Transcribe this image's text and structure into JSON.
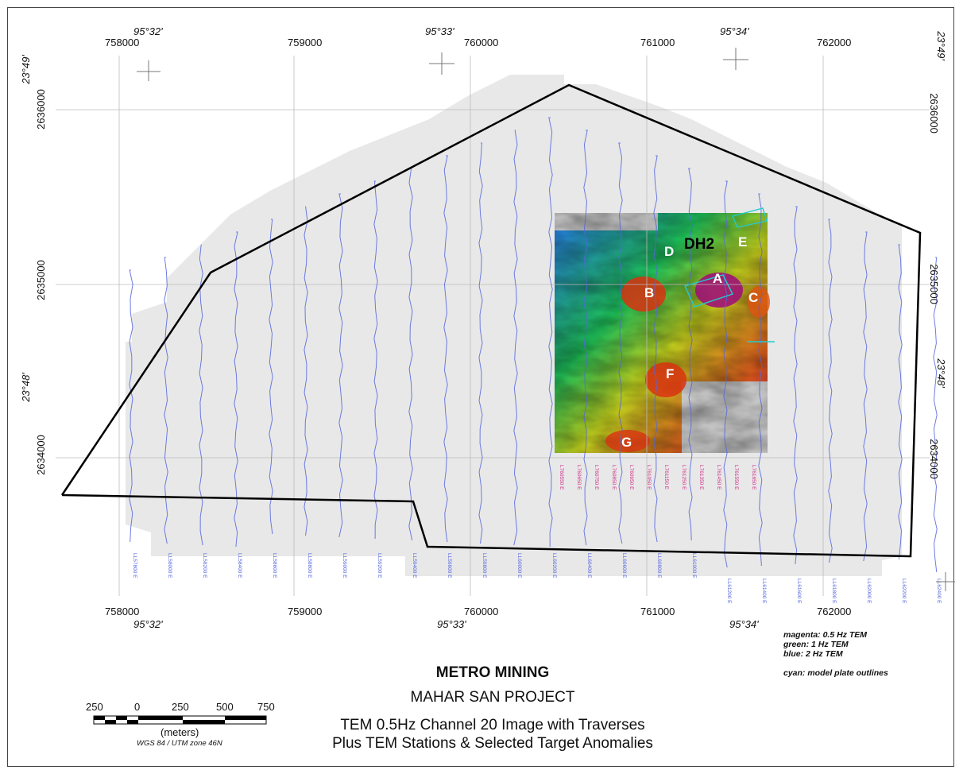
{
  "map": {
    "easting_ticks": [
      "758000",
      "759000",
      "760000",
      "761000",
      "762000"
    ],
    "northing_ticks": [
      "2636000",
      "2635000",
      "2634000"
    ],
    "longitude_labels": [
      "95°32'",
      "95°33'",
      "95°34'"
    ],
    "latitude_labels": [
      "23°49'",
      "23°48'"
    ],
    "targets": [
      "A",
      "B",
      "C",
      "D",
      "E",
      "F",
      "G"
    ],
    "drillhole_label": "DH2",
    "traverse_labels_blue": [
      "LL57800 E",
      "LL58000 E",
      "LL58200 E",
      "LL58400 E",
      "LL58600 E",
      "LL58800 E",
      "LL59000 E",
      "LL59200 E",
      "LL59400 E",
      "LL59600 E",
      "LL59800 E",
      "LL60000 E",
      "LL60200 E",
      "LL60400 E",
      "LL60600 E",
      "LL60800 E",
      "LL61000 E",
      "LL61200 E",
      "LL61400 E",
      "LL61600 E",
      "LL61800 E",
      "LL62000 E",
      "LL62200 E",
      "LL62400 E"
    ],
    "traverse_labels_magenta": [
      "L760550 E",
      "L760650 E",
      "L760750 E",
      "L760850 E",
      "L760950 E",
      "L761050 E",
      "L761150 E",
      "L761250 E",
      "L761350 E",
      "L761450 E",
      "L761550 E",
      "L761650 E"
    ]
  },
  "legend": {
    "magenta": "magenta: 0.5 Hz TEM",
    "green": "green:    1 Hz TEM",
    "blue": "blue:      2 Hz TEM",
    "cyan": "cyan:      model plate outlines"
  },
  "title": {
    "company": "METRO MINING",
    "project": "MAHAR SAN PROJECT",
    "line1": "TEM 0.5Hz Channel 20 Image with Traverses",
    "line2": "Plus TEM Stations & Selected Target Anomalies"
  },
  "scale_bar": {
    "labels": [
      "250",
      "0",
      "250",
      "500",
      "750"
    ],
    "unit": "(meters)",
    "datum": "WGS 84 / UTM zone 46N"
  },
  "colors": {
    "boundary": "#000000",
    "traverse_blue": "#5566dd",
    "traverse_magenta": "#cc3388",
    "plate_cyan": "#22cccc"
  }
}
